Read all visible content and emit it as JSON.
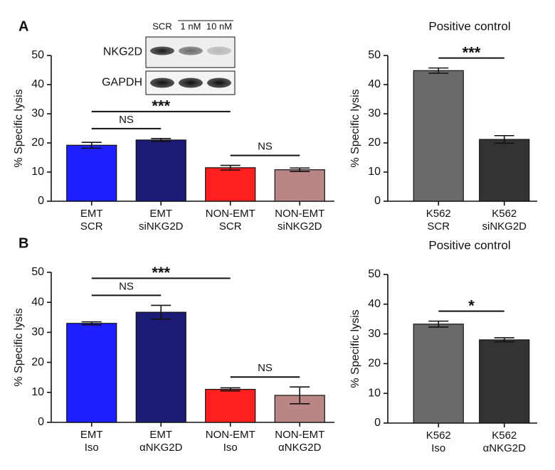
{
  "chart_data": [
    {
      "type": "bar",
      "panel": "A",
      "y_label": "% Specific lysis",
      "categories": [
        [
          "EMT",
          "SCR"
        ],
        [
          "EMT",
          "siNKG2D"
        ],
        [
          "NON-EMT",
          "SCR"
        ],
        [
          "NON-EMT",
          "siNKG2D"
        ]
      ],
      "values": [
        19.2,
        21.0,
        11.5,
        10.8
      ],
      "errors": [
        1.0,
        0.5,
        0.8,
        0.6
      ],
      "colors": [
        "#1f1fff",
        "#1c1c78",
        "#ff1f1f",
        "#b98585"
      ],
      "ylim": [
        0,
        50
      ],
      "yticks": [
        0,
        10,
        20,
        30,
        40,
        50
      ],
      "annotations": [
        {
          "text": "NS",
          "from": 0,
          "to": 1
        },
        {
          "text": "***",
          "from": 0,
          "to": 2
        },
        {
          "text": "NS",
          "from": 2,
          "to": 3
        }
      ],
      "inset": {
        "lanes": [
          "SCR",
          "1 nM",
          "10 nM"
        ],
        "rows": [
          "NKG2D",
          "GAPDH"
        ]
      }
    },
    {
      "type": "bar",
      "title": "Positive control",
      "y_label": "% Specific lysis",
      "categories": [
        [
          "K562",
          "SCR"
        ],
        [
          "K562",
          "siNKG2D"
        ]
      ],
      "values": [
        44.8,
        21.2
      ],
      "errors": [
        0.9,
        1.3
      ],
      "colors": [
        "#6a6a6a",
        "#333333"
      ],
      "ylim": [
        0,
        50
      ],
      "yticks": [
        0,
        10,
        20,
        30,
        40,
        50
      ],
      "annotations": [
        {
          "text": "***",
          "from": 0,
          "to": 1
        }
      ]
    },
    {
      "type": "bar",
      "panel": "B",
      "y_label": "% Specific lysis",
      "categories": [
        [
          "EMT",
          "Iso"
        ],
        [
          "EMT",
          "αNKG2D"
        ],
        [
          "NON-EMT",
          "Iso"
        ],
        [
          "NON-EMT",
          "αNKG2D"
        ]
      ],
      "values": [
        33.0,
        36.7,
        11.0,
        9.0
      ],
      "errors": [
        0.5,
        2.3,
        0.5,
        2.8
      ],
      "colors": [
        "#1f1fff",
        "#1c1c78",
        "#ff1f1f",
        "#b98585"
      ],
      "ylim": [
        0,
        50
      ],
      "yticks": [
        0,
        10,
        20,
        30,
        40,
        50
      ],
      "annotations": [
        {
          "text": "NS",
          "from": 0,
          "to": 1
        },
        {
          "text": "***",
          "from": 0,
          "to": 2
        },
        {
          "text": "NS",
          "from": 2,
          "to": 3
        }
      ]
    },
    {
      "type": "bar",
      "title": "Positive control",
      "y_label": "% Specific lysis",
      "categories": [
        [
          "K562",
          "Iso"
        ],
        [
          "K562",
          "αNKG2D"
        ]
      ],
      "values": [
        33.3,
        28.0
      ],
      "errors": [
        1.0,
        0.7
      ],
      "colors": [
        "#6a6a6a",
        "#333333"
      ],
      "ylim": [
        0,
        50
      ],
      "yticks": [
        0,
        10,
        20,
        30,
        40,
        50
      ],
      "annotations": [
        {
          "text": "*",
          "from": 0,
          "to": 1
        }
      ]
    }
  ]
}
